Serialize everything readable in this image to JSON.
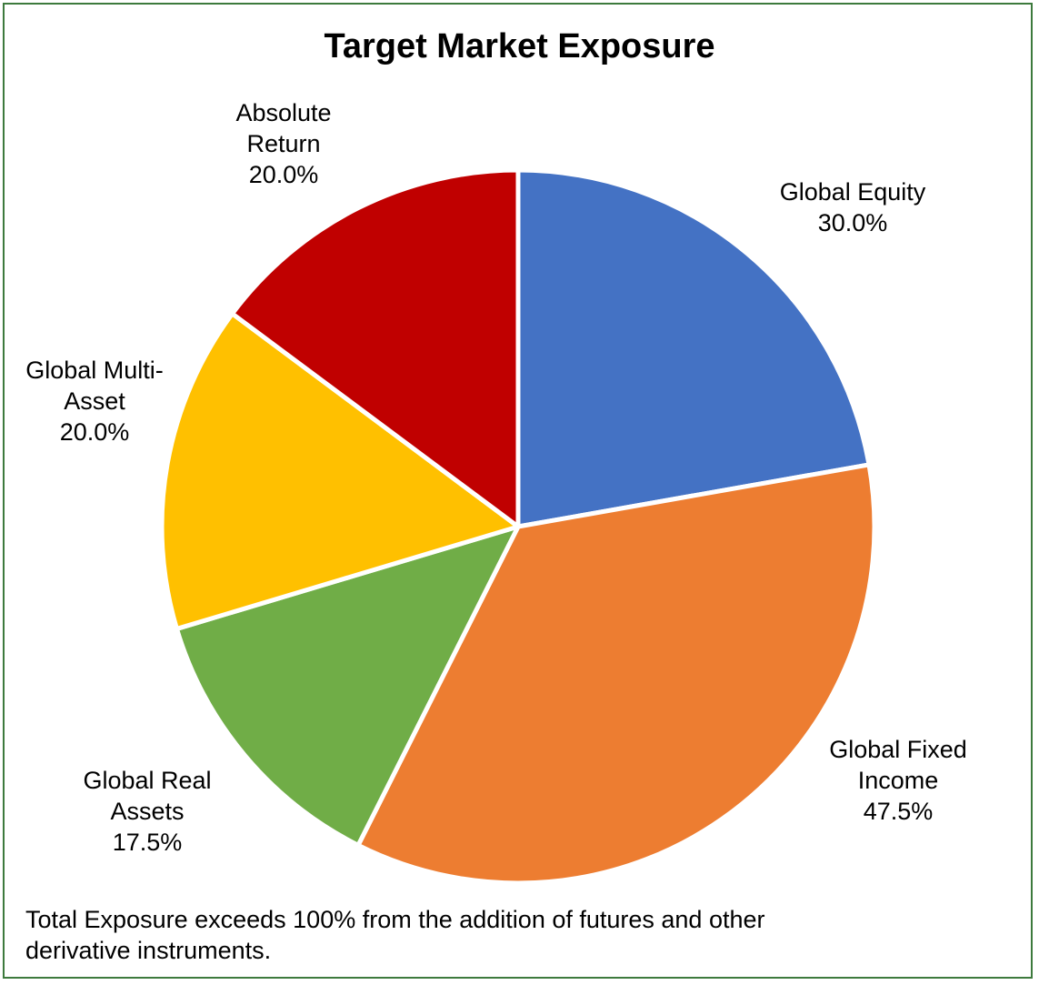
{
  "chart_data": {
    "type": "pie",
    "title": "Target Market Exposure",
    "slices": [
      {
        "name": "Global Equity",
        "label_lines": [
          "Global Equity",
          "30.0%"
        ],
        "value": 30.0,
        "color": "#4472C4"
      },
      {
        "name": "Global Fixed Income",
        "label_lines": [
          "Global Fixed",
          "Income",
          "47.5%"
        ],
        "value": 47.5,
        "color": "#ED7D31"
      },
      {
        "name": "Global Real Assets",
        "label_lines": [
          "Global Real",
          "Assets",
          "17.5%"
        ],
        "value": 17.5,
        "color": "#70AD47"
      },
      {
        "name": "Global Multi-Asset",
        "label_lines": [
          "Global Multi-",
          "Asset",
          "20.0%"
        ],
        "value": 20.0,
        "color": "#FFC000"
      },
      {
        "name": "Absolute Return",
        "label_lines": [
          "Absolute",
          "Return",
          "20.0%"
        ],
        "value": 20.0,
        "color": "#C00000"
      }
    ],
    "legend": "none"
  },
  "footnote": {
    "line1": "Total Exposure exceeds 100% from the addition of futures and other",
    "line2": "derivative instruments."
  },
  "border_color": "#3d7a3d"
}
